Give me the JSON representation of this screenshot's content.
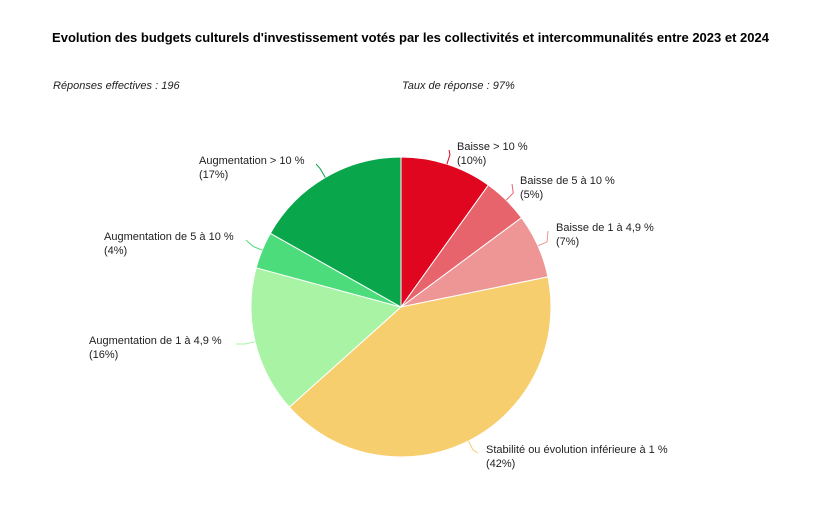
{
  "header": {
    "title": "Evolution des budgets culturels d'investissement votés par les collectivités et intercommunalités entre 2023 et 2024",
    "responses": "Réponses effectives : 196",
    "rate": "Taux de réponse : 97%"
  },
  "chart_data": {
    "type": "pie",
    "title": "Evolution des budgets culturels d'investissement votés par les collectivités et intercommunalités entre 2023 et 2024",
    "slices": [
      {
        "label": "Baisse > 10 %",
        "value": 10,
        "display": "(10%)",
        "color": "#e0061f"
      },
      {
        "label": "Baisse de 5 à 10 %",
        "value": 5,
        "display": "(5%)",
        "color": "#e8646c"
      },
      {
        "label": "Baisse de 1 à 4,9 %",
        "value": 7,
        "display": "(7%)",
        "color": "#ee9696"
      },
      {
        "label": "Stabilité ou évolution inférieure à 1 %",
        "value": 42,
        "display": "(42%)",
        "color": "#f7ce6e"
      },
      {
        "label": "Augmentation de 1 à 4,9 %",
        "value": 16,
        "display": "(16%)",
        "color": "#a8f4a4"
      },
      {
        "label": "Augmentation de 5 à 10 %",
        "value": 4,
        "display": "(4%)",
        "color": "#4cdc7c"
      },
      {
        "label": "Augmentation > 10 %",
        "value": 17,
        "display": "(17%)",
        "color": "#0aa64c"
      }
    ],
    "start_angle": "top",
    "direction": "clockwise",
    "legend": "none (inline labels)"
  }
}
